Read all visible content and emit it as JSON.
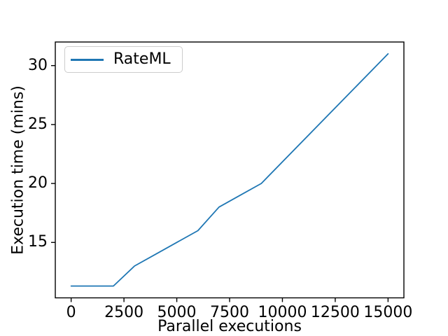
{
  "figure": {
    "background_color": "#ffffff",
    "axes_edge_color": "#000000",
    "text_color": "#000000"
  },
  "chart_data": {
    "type": "line",
    "title": "",
    "xlabel": "Parallel executions",
    "ylabel": "Execution time (mins)",
    "grid": false,
    "legend_position": "upper left",
    "xlim": [
      -750,
      15750
    ],
    "ylim": [
      10.3,
      32.0
    ],
    "x_ticks": [
      "0",
      "2500",
      "5000",
      "7500",
      "10000",
      "12500",
      "15000"
    ],
    "x_tick_values": [
      0,
      2500,
      5000,
      7500,
      10000,
      12500,
      15000
    ],
    "y_ticks": [
      "15",
      "20",
      "25",
      "30"
    ],
    "y_tick_values": [
      15,
      20,
      25,
      30
    ],
    "series": [
      {
        "name": "RateML",
        "color": "#1f77b4",
        "x": [
          0,
          2000,
          3000,
          4000,
          5000,
          6000,
          7000,
          8000,
          9000,
          15000
        ],
        "y": [
          11.3,
          11.3,
          13,
          14,
          15,
          16,
          18,
          19,
          20,
          31
        ]
      }
    ]
  }
}
